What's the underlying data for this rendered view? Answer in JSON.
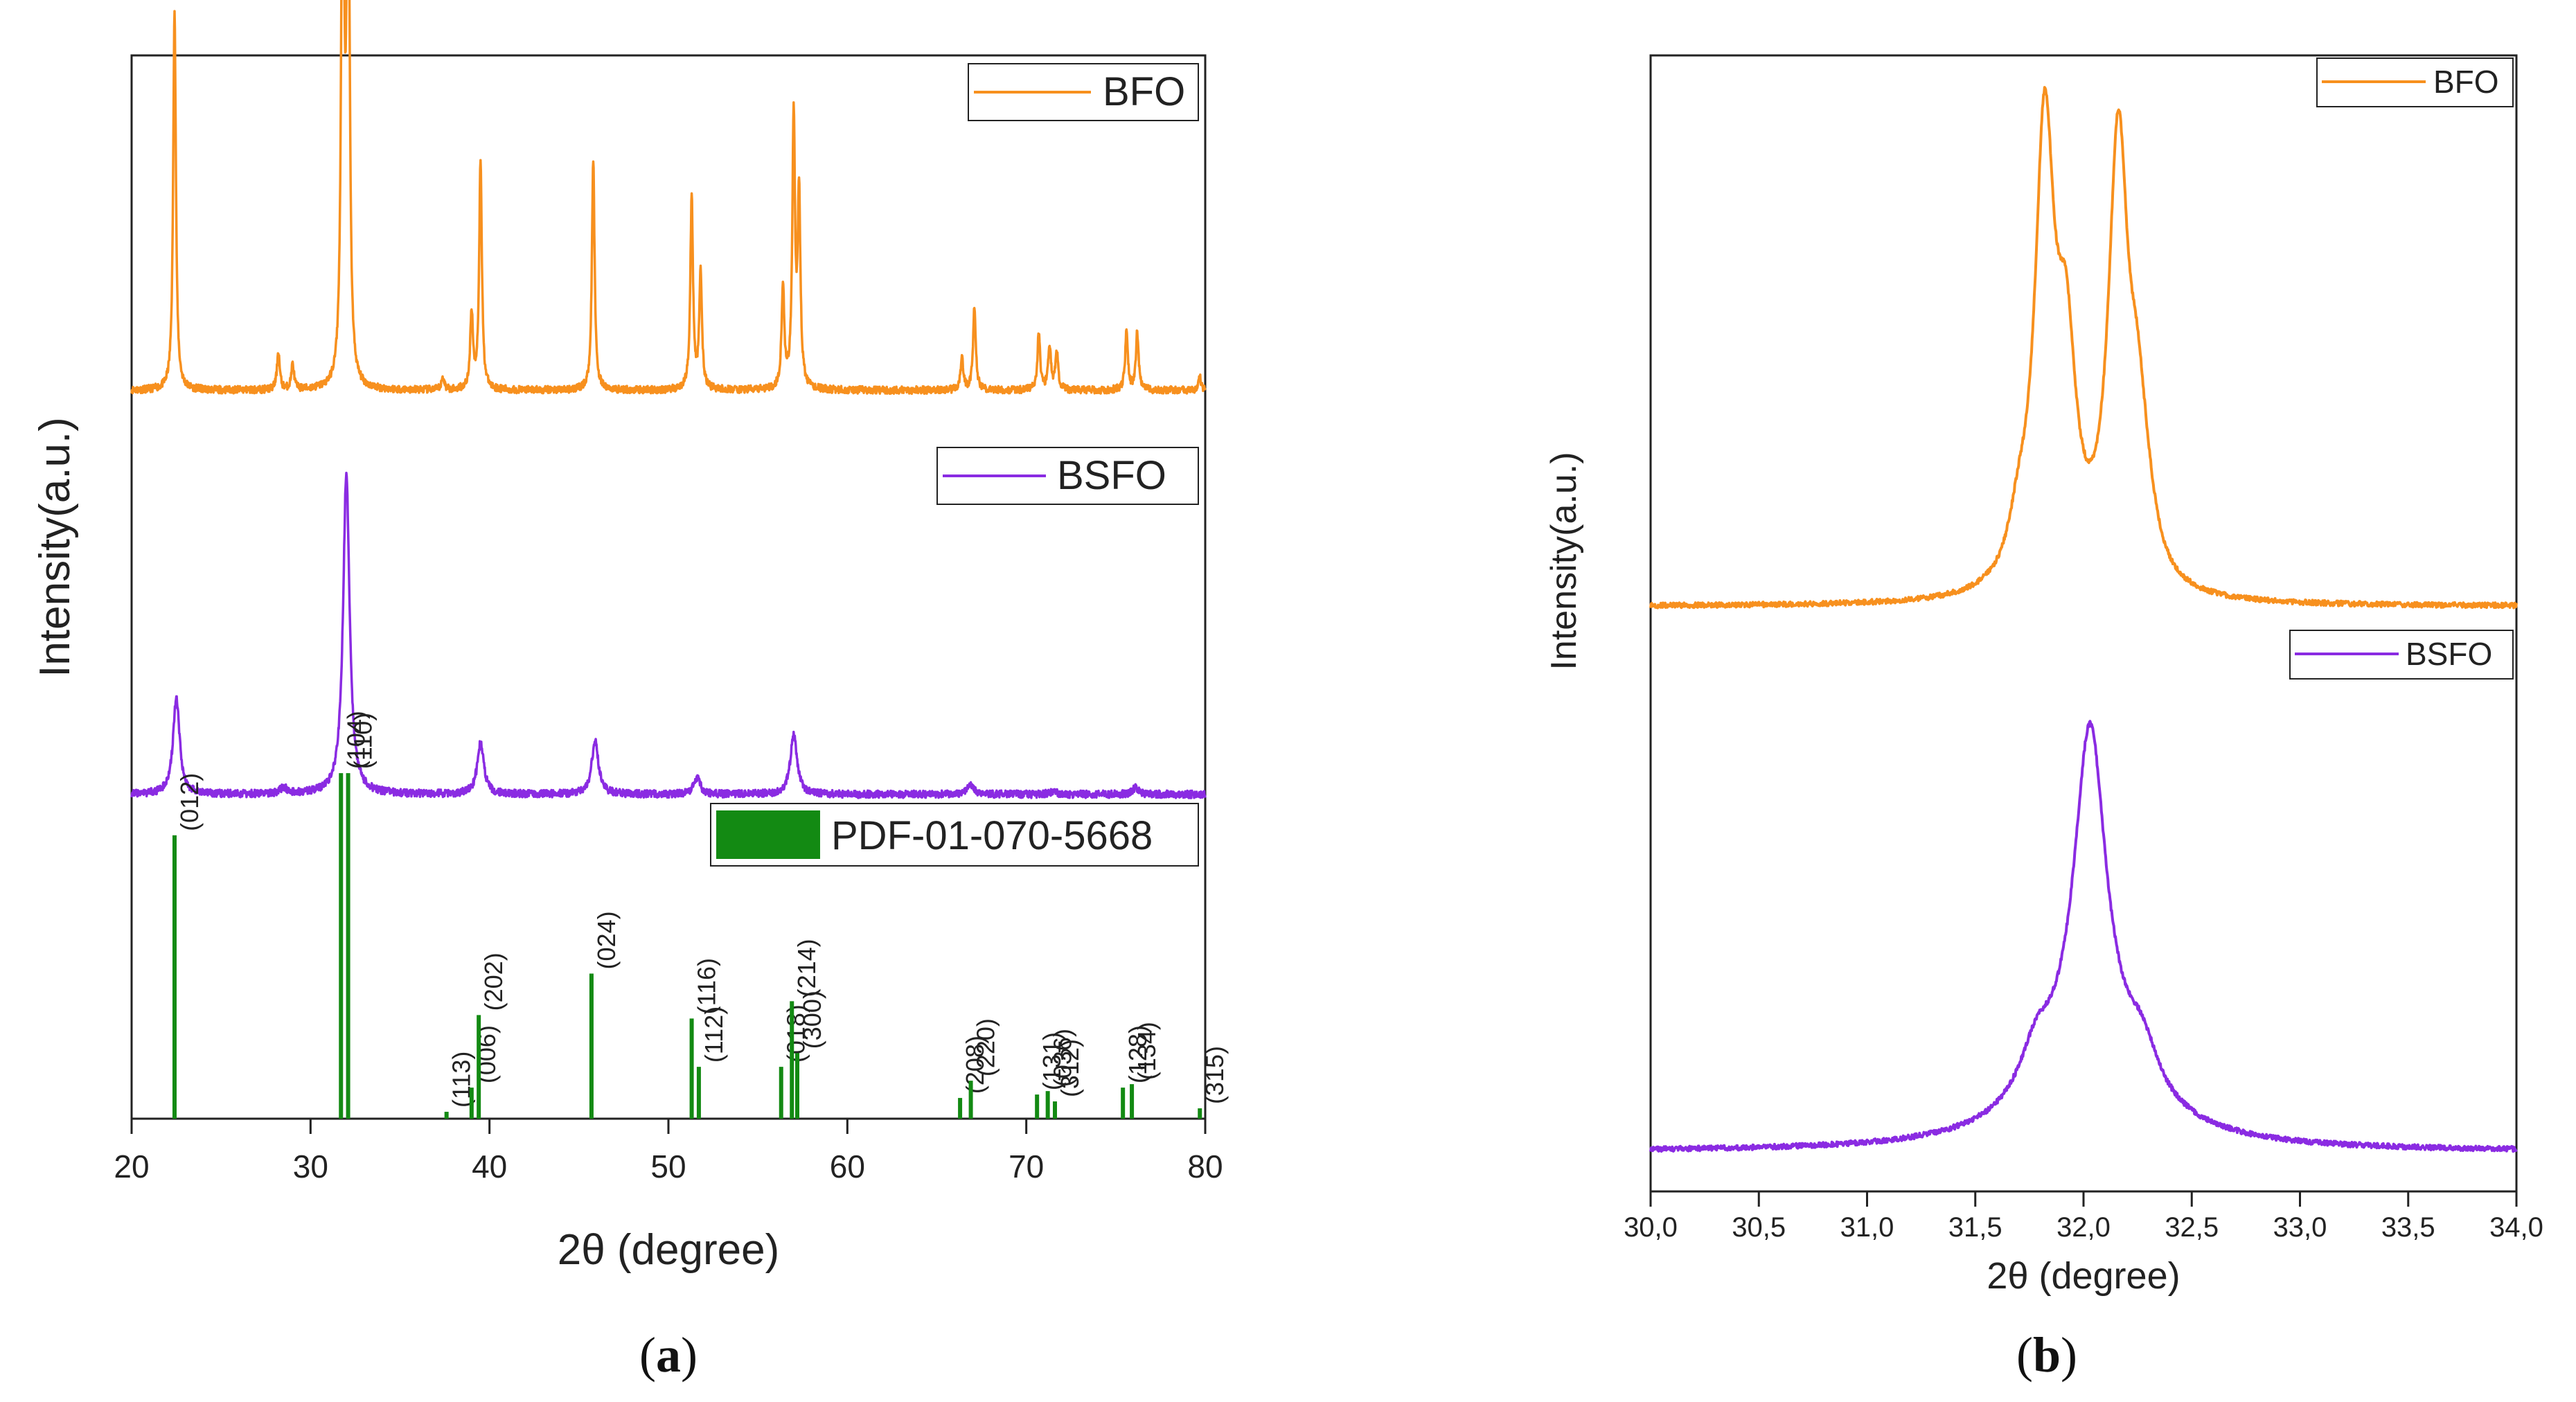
{
  "colors": {
    "bfo": "#f7901e",
    "bsfo": "#8a2be2",
    "pdf": "#138a13",
    "axis": "#222222"
  },
  "chart_data": [
    {
      "panel": "a",
      "caption_label": "a",
      "type": "line",
      "xlabel": "2θ (degree)",
      "ylabel": "Intensity(a.u.)",
      "xlim": [
        20,
        80
      ],
      "xticks": [
        20,
        30,
        40,
        50,
        60,
        70,
        80
      ],
      "xtick_labels": [
        "20",
        "30",
        "40",
        "50",
        "60",
        "70",
        "80"
      ],
      "series": [
        {
          "name": "BFO",
          "legend": "BFO",
          "baseline": 0.315,
          "scale": 0.6,
          "noise": 0.0035,
          "width": 0.09,
          "peaks": [
            [
              22.4,
              0.6
            ],
            [
              28.2,
              0.06
            ],
            [
              29.0,
              0.04
            ],
            [
              31.8,
              1.0
            ],
            [
              32.1,
              0.98
            ],
            [
              37.4,
              0.02
            ],
            [
              39.0,
              0.12
            ],
            [
              39.5,
              0.36
            ],
            [
              45.8,
              0.36
            ],
            [
              51.3,
              0.3
            ],
            [
              51.8,
              0.18
            ],
            [
              56.4,
              0.16
            ],
            [
              57.0,
              0.42
            ],
            [
              57.3,
              0.3
            ],
            [
              66.4,
              0.05
            ],
            [
              67.1,
              0.13
            ],
            [
              70.7,
              0.09
            ],
            [
              71.3,
              0.07
            ],
            [
              71.7,
              0.06
            ],
            [
              75.6,
              0.09
            ],
            [
              76.2,
              0.09
            ],
            [
              79.7,
              0.02
            ]
          ]
        },
        {
          "name": "BSFO",
          "legend": "BSFO",
          "baseline": 0.695,
          "scale": 0.3,
          "noise": 0.0035,
          "width": 0.22,
          "peaks": [
            [
              22.5,
              0.3
            ],
            [
              28.5,
              0.02
            ],
            [
              32.0,
              1.0
            ],
            [
              39.5,
              0.16
            ],
            [
              45.9,
              0.17
            ],
            [
              51.6,
              0.05
            ],
            [
              57.0,
              0.19
            ],
            [
              66.9,
              0.03
            ],
            [
              71.5,
              0.01
            ],
            [
              76.1,
              0.02
            ]
          ]
        }
      ],
      "reference": {
        "name": "PDF-01-070-5668",
        "legend": "PDF-01-070-5668",
        "baseline": 1.0,
        "scale": 0.325,
        "lines": [
          {
            "x": 22.4,
            "h": 0.82,
            "hkl": "(012)"
          },
          {
            "x": 31.7,
            "h": 1.0,
            "hkl": "(104)"
          },
          {
            "x": 32.1,
            "h": 1.0,
            "hkl": "(110)"
          },
          {
            "x": 37.6,
            "h": 0.02,
            "hkl": "(113)"
          },
          {
            "x": 39.0,
            "h": 0.09,
            "hkl": "(006)"
          },
          {
            "x": 39.4,
            "h": 0.3,
            "hkl": "(202)"
          },
          {
            "x": 45.7,
            "h": 0.42,
            "hkl": "(024)"
          },
          {
            "x": 51.3,
            "h": 0.29,
            "hkl": "(116)"
          },
          {
            "x": 51.7,
            "h": 0.15,
            "hkl": "(112)"
          },
          {
            "x": 56.3,
            "h": 0.15,
            "hkl": "(018)"
          },
          {
            "x": 56.9,
            "h": 0.34,
            "hkl": "(214)"
          },
          {
            "x": 57.2,
            "h": 0.19,
            "hkl": "(300)"
          },
          {
            "x": 66.3,
            "h": 0.06,
            "hkl": "(208)"
          },
          {
            "x": 66.9,
            "h": 0.11,
            "hkl": "(220)"
          },
          {
            "x": 70.6,
            "h": 0.07,
            "hkl": "(131)"
          },
          {
            "x": 71.2,
            "h": 0.08,
            "hkl": "(036)"
          },
          {
            "x": 71.6,
            "h": 0.05,
            "hkl": "(312)"
          },
          {
            "x": 75.4,
            "h": 0.09,
            "hkl": "(128)"
          },
          {
            "x": 75.9,
            "h": 0.1,
            "hkl": "(134)"
          },
          {
            "x": 79.7,
            "h": 0.03,
            "hkl": "(315)"
          }
        ]
      }
    },
    {
      "panel": "b",
      "caption_label": "b",
      "type": "line",
      "xlabel": "2θ (degree)",
      "ylabel": "Intensity(a.u.)",
      "xlim": [
        30.0,
        34.0
      ],
      "xticks": [
        30.0,
        30.5,
        31.0,
        31.5,
        32.0,
        32.5,
        33.0,
        33.5,
        34.0
      ],
      "xtick_labels": [
        "30,0",
        "30,5",
        "31,0",
        "31,5",
        "32,0",
        "32,5",
        "33,0",
        "33,5",
        "34,0"
      ],
      "series": [
        {
          "name": "BFO",
          "legend": "BFO",
          "baseline": 0.485,
          "scale": 0.395,
          "noise": 0.0022,
          "width": 0.055,
          "peaks": [
            [
              31.82,
              1.0
            ],
            [
              31.92,
              0.45
            ],
            [
              32.16,
              0.97
            ],
            [
              32.25,
              0.3
            ],
            [
              31.7,
              0.1
            ],
            [
              32.3,
              0.05
            ]
          ]
        },
        {
          "name": "BSFO",
          "legend": "BSFO",
          "baseline": 0.965,
          "scale": 0.395,
          "noise": 0.0022,
          "width": 0.09,
          "peaks": [
            [
              32.03,
              0.75
            ],
            [
              32.03,
              0.18,
              0.3
            ],
            [
              31.78,
              0.1
            ],
            [
              32.27,
              0.1
            ]
          ]
        }
      ]
    }
  ]
}
